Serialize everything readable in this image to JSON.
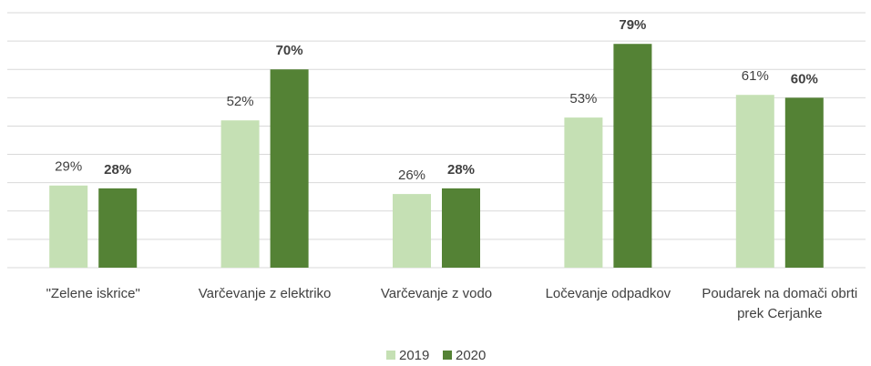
{
  "chart_data": {
    "type": "bar",
    "categories": [
      "\"Zelene iskrice\"",
      "Varčevanje z elektriko",
      "Varčevanje z vodo",
      "Ločevanje odpadkov",
      "Poudarek na domači obrti prek Cerjanke"
    ],
    "series": [
      {
        "name": "2019",
        "color": "#c5e0b4",
        "values": [
          29,
          52,
          26,
          53,
          61
        ],
        "value_labels": [
          "29%",
          "52%",
          "26%",
          "53%",
          "61%"
        ]
      },
      {
        "name": "2020",
        "color": "#548235",
        "values": [
          28,
          70,
          28,
          79,
          60
        ],
        "value_labels": [
          "28%",
          "70%",
          "28%",
          "79%",
          "60%"
        ]
      }
    ],
    "ylim": [
      0,
      90
    ],
    "yticks": [
      0,
      10,
      20,
      30,
      40,
      50,
      60,
      70,
      80,
      90
    ],
    "grid": true,
    "legend": "bottom"
  }
}
